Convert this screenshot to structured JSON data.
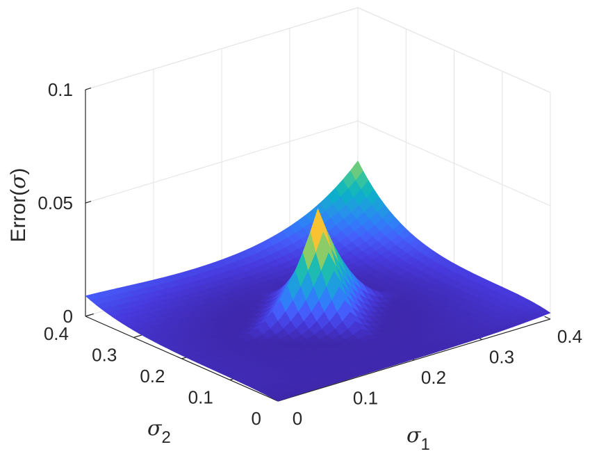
{
  "chart_data": {
    "type": "surface",
    "title": "",
    "xlabel": {
      "symbol": "σ",
      "subscript": "1"
    },
    "ylabel": {
      "symbol": "σ",
      "subscript": "2"
    },
    "zlabel": {
      "prefix": "Error(",
      "symbol": "σ",
      "suffix": ")"
    },
    "xlim": [
      0,
      0.4
    ],
    "ylim": [
      0,
      0.4
    ],
    "zlim": [
      0,
      0.1
    ],
    "xticks": [
      0,
      0.1,
      0.2,
      0.3,
      0.4
    ],
    "yticks": [
      0,
      0.1,
      0.2,
      0.3,
      0.4
    ],
    "zticks": [
      0,
      0.05,
      0.1
    ],
    "xtick_labels": [
      "0",
      "0.1",
      "0.2",
      "0.3",
      "0.4"
    ],
    "ytick_labels": [
      "0",
      "0.1",
      "0.2",
      "0.3",
      "0.4"
    ],
    "ztick_labels": [
      "0",
      "0.05",
      "0.1"
    ],
    "grid": true,
    "colormap": "parula",
    "surface": {
      "peak": {
        "x": 0.2,
        "y": 0.2,
        "z": 0.048
      },
      "corner_values": {
        "x0_y0": 0.0,
        "x0.4_y0": 0.003,
        "x0_y0.4": 0.01,
        "x0.4_y0.4": 0.036
      },
      "floor": 0.0
    }
  }
}
